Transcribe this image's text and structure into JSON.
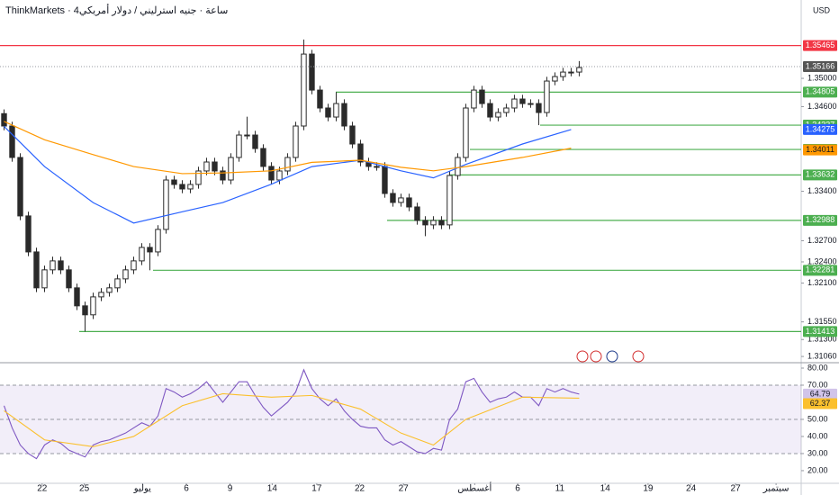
{
  "header": {
    "title": "ThinkMarkets · 4ساعة · جنيه استرليني / دولار أمريكي",
    "currency": "USD"
  },
  "chart_data": [
    {
      "type": "candlestick",
      "color": "#2a2a2a",
      "xlim": [
        -0.5,
        98.4
      ],
      "ylim": [
        1.3101,
        1.3611
      ],
      "yticks": [
        {
          "value": 1.35,
          "label": "1.35000"
        },
        {
          "value": 1.346,
          "label": "1.34600"
        },
        {
          "value": 1.334,
          "label": "1.33400"
        },
        {
          "value": 1.327,
          "label": "1.32700"
        },
        {
          "value": 1.324,
          "label": "1.32400"
        },
        {
          "value": 1.321,
          "label": "1.32100"
        },
        {
          "value": 1.3155,
          "label": "1.31550"
        },
        {
          "value": 1.313,
          "label": "1.31300"
        },
        {
          "value": 1.3106,
          "label": "1.31060"
        }
      ],
      "open": [
        1.345,
        1.34325,
        1.33879,
        1.33051,
        1.32541,
        1.32032,
        1.32287,
        1.32414,
        1.32287,
        1.32032,
        1.31777,
        1.3165,
        1.31904,
        1.31968,
        1.32032,
        1.32159,
        1.32287,
        1.32414,
        1.32605,
        1.32541,
        1.3286,
        1.3356,
        1.33497,
        1.33433,
        1.33497,
        1.33688,
        1.33815,
        1.33688,
        1.3356,
        1.33879,
        1.34197,
        1.34197,
        1.34006,
        1.33752,
        1.3356,
        1.33688,
        1.33879,
        1.34325,
        1.35344,
        1.34834,
        1.3458,
        1.34452,
        1.34643,
        1.34325,
        1.3407,
        1.33815,
        1.33752,
        1.33752,
        1.33369,
        1.33242,
        1.33306,
        1.33178,
        1.32987,
        1.32924,
        1.32987,
        1.32924,
        1.33624,
        1.33879,
        1.3458,
        1.34834,
        1.34643,
        1.34452,
        1.34516,
        1.3458,
        1.34707,
        1.34643,
        1.34643,
        1.34516,
        1.34962,
        1.35025,
        1.35089,
        1.35089
      ],
      "high": [
        1.3456,
        1.34385,
        1.33939,
        1.33111,
        1.32601,
        1.32347,
        1.32474,
        1.32474,
        1.32347,
        1.32092,
        1.31837,
        1.31964,
        1.32028,
        1.32092,
        1.32219,
        1.32347,
        1.32474,
        1.32665,
        1.32665,
        1.3292,
        1.3362,
        1.3362,
        1.33557,
        1.33557,
        1.33748,
        1.33875,
        1.33875,
        1.33748,
        1.33939,
        1.34257,
        1.34457,
        1.34257,
        1.34066,
        1.33812,
        1.33748,
        1.33939,
        1.34385,
        1.3555,
        1.35404,
        1.34894,
        1.3464,
        1.34805,
        1.34703,
        1.34385,
        1.3413,
        1.33875,
        1.33812,
        1.33812,
        1.33429,
        1.33366,
        1.33366,
        1.33238,
        1.33047,
        1.33047,
        1.33047,
        1.33684,
        1.33939,
        1.3464,
        1.34894,
        1.34894,
        1.34703,
        1.34576,
        1.3464,
        1.34767,
        1.34767,
        1.34703,
        1.34703,
        1.35022,
        1.35085,
        1.35149,
        1.35149,
        1.35245
      ],
      "low": [
        1.34265,
        1.33819,
        1.32991,
        1.32481,
        1.31972,
        1.31972,
        1.32227,
        1.32227,
        1.31972,
        1.31717,
        1.31413,
        1.3159,
        1.31844,
        1.31908,
        1.31972,
        1.32099,
        1.32227,
        1.32354,
        1.32281,
        1.32481,
        1.328,
        1.33437,
        1.33373,
        1.33373,
        1.33437,
        1.33628,
        1.33628,
        1.335,
        1.335,
        1.33819,
        1.34137,
        1.33946,
        1.33692,
        1.335,
        1.335,
        1.33628,
        1.33819,
        1.34265,
        1.34774,
        1.3452,
        1.34392,
        1.34392,
        1.34265,
        1.3401,
        1.33755,
        1.33692,
        1.33692,
        1.33309,
        1.33182,
        1.33182,
        1.33118,
        1.32927,
        1.32764,
        1.32864,
        1.32864,
        1.32864,
        1.33564,
        1.33819,
        1.3452,
        1.34583,
        1.34392,
        1.34392,
        1.34456,
        1.3452,
        1.34583,
        1.34583,
        1.34337,
        1.34456,
        1.34902,
        1.34965,
        1.35029,
        1.35029
      ],
      "close": [
        1.34325,
        1.33879,
        1.33051,
        1.32541,
        1.32032,
        1.32287,
        1.32414,
        1.32287,
        1.32032,
        1.31777,
        1.3165,
        1.31904,
        1.31968,
        1.32032,
        1.32159,
        1.32287,
        1.32414,
        1.32605,
        1.32541,
        1.3286,
        1.3356,
        1.33497,
        1.33433,
        1.33497,
        1.33688,
        1.33815,
        1.33688,
        1.3356,
        1.33879,
        1.34197,
        1.34197,
        1.34006,
        1.33752,
        1.3356,
        1.33688,
        1.33879,
        1.34325,
        1.35344,
        1.34834,
        1.3458,
        1.34452,
        1.34643,
        1.34325,
        1.3407,
        1.33815,
        1.33752,
        1.33752,
        1.33369,
        1.33242,
        1.33306,
        1.33178,
        1.32987,
        1.32924,
        1.32987,
        1.32924,
        1.33624,
        1.33879,
        1.3458,
        1.34834,
        1.34643,
        1.34452,
        1.34516,
        1.3458,
        1.34707,
        1.34643,
        1.34643,
        1.34516,
        1.34962,
        1.35025,
        1.35089,
        1.35089,
        1.35153
      ],
      "last_price": 1.35166,
      "levels": [
        {
          "value": 1.35465,
          "color": "#f23645"
        },
        {
          "value": 1.34805,
          "color": "#4caf50"
        },
        {
          "value": 1.34337,
          "color": "#4caf50"
        },
        {
          "value": 1.33993,
          "color": "#4caf50"
        },
        {
          "value": 1.33632,
          "color": "#4caf50"
        },
        {
          "value": 1.32988,
          "color": "#4caf50"
        },
        {
          "value": 1.32281,
          "color": "#4caf50"
        },
        {
          "value": 1.31413,
          "color": "#4caf50"
        }
      ],
      "series": [
        {
          "color": "#2962ff",
          "x": [
            0,
            5,
            11,
            16,
            22,
            27,
            33,
            38,
            44,
            49,
            53,
            57,
            64,
            70
          ],
          "values": [
            1.3432,
            1.3375,
            1.3324,
            1.3295,
            1.3311,
            1.3324,
            1.335,
            1.3375,
            1.3384,
            1.3369,
            1.3359,
            1.3378,
            1.3407,
            1.34275
          ]
        },
        {
          "color": "#ff9800",
          "x": [
            0,
            5,
            11,
            16,
            22,
            27,
            33,
            38,
            44,
            49,
            53,
            57,
            64,
            70
          ],
          "values": [
            1.3439,
            1.3413,
            1.3392,
            1.3375,
            1.3365,
            1.3366,
            1.3369,
            1.3381,
            1.3384,
            1.3374,
            1.3369,
            1.3375,
            1.3388,
            1.34011
          ]
        }
      ]
    },
    {
      "type": "line",
      "color": "#7e57c2",
      "xlim": [
        -0.5,
        98.4
      ],
      "ylim": [
        12.6,
        82.1
      ],
      "yticks": [
        {
          "value": 80,
          "label": "80.00"
        },
        {
          "value": 70,
          "label": "70.00"
        },
        {
          "value": 50,
          "label": "50.00"
        },
        {
          "value": 40,
          "label": "40.00"
        },
        {
          "value": 30,
          "label": "30.00"
        },
        {
          "value": 20,
          "label": "20.00"
        }
      ],
      "levels": [
        70,
        50,
        30
      ],
      "values": [
        58,
        45,
        35,
        30,
        27,
        35,
        38,
        36,
        32,
        30,
        28,
        35,
        37,
        38,
        40,
        42,
        45,
        48,
        46,
        52,
        68,
        66,
        63,
        65,
        68,
        72,
        66,
        60,
        66,
        72,
        72,
        64,
        57,
        52,
        56,
        60,
        66,
        79,
        68,
        62,
        58,
        62,
        55,
        50,
        46,
        45,
        45,
        38,
        35,
        37,
        34,
        31,
        30,
        33,
        32,
        50,
        56,
        72,
        74,
        66,
        60,
        62,
        63,
        66,
        63,
        63,
        58,
        68,
        66,
        68,
        66,
        64.79
      ],
      "series": [
        {
          "color": "#fbc02d",
          "x": [
            0,
            5,
            11,
            16,
            22,
            27,
            33,
            38,
            44,
            49,
            53,
            57,
            64,
            71
          ],
          "values": [
            55,
            38,
            34,
            40,
            58,
            65,
            63,
            64,
            56,
            42,
            35,
            50,
            63,
            62.37
          ]
        }
      ],
      "xticks": [
        {
          "value": 4.7,
          "label": "22"
        },
        {
          "value": 9.9,
          "label": "25"
        },
        {
          "value": 17.1,
          "label": "يوليو"
        },
        {
          "value": 22.5,
          "label": "6"
        },
        {
          "value": 27.9,
          "label": "9"
        },
        {
          "value": 33.1,
          "label": "14"
        },
        {
          "value": 38.6,
          "label": "17"
        },
        {
          "value": 43.9,
          "label": "22"
        },
        {
          "value": 49.3,
          "label": "27"
        },
        {
          "value": 58.1,
          "label": "أغسطس"
        },
        {
          "value": 63.4,
          "label": "6"
        },
        {
          "value": 68.6,
          "label": "11"
        },
        {
          "value": 74.2,
          "label": "14"
        },
        {
          "value": 79.5,
          "label": "19"
        },
        {
          "value": 84.8,
          "label": "24"
        },
        {
          "value": 90.3,
          "label": "27"
        },
        {
          "value": 95.3,
          "label": "سبتمبر"
        }
      ]
    }
  ]
}
